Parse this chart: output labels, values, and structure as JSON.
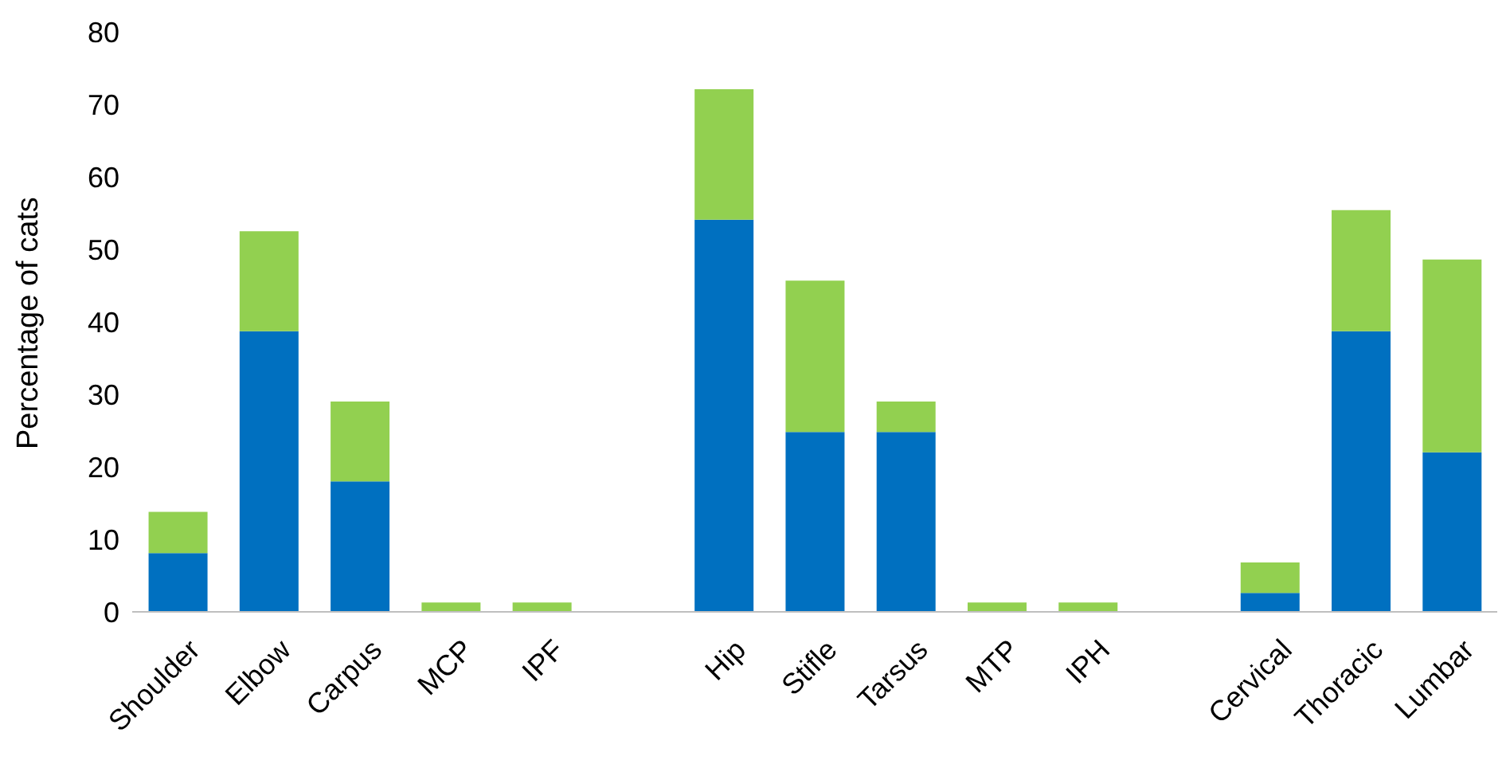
{
  "chart_data": {
    "type": "bar",
    "stacked": true,
    "ylabel": "Percentage of cats",
    "categories": [
      "Shoulder",
      "Elbow",
      "Carpus",
      "MCP",
      "IPF",
      null,
      "Hip",
      "Stifle",
      "Tarsus",
      "MTP",
      "IPH",
      null,
      "Cervical",
      "Thoracic",
      "Lumbar"
    ],
    "series": [
      {
        "color": "#0070c0",
        "values": [
          8.1,
          38.7,
          18.0,
          0,
          0,
          null,
          54.1,
          24.8,
          24.8,
          0,
          0,
          null,
          2.6,
          38.7,
          22.0
        ]
      },
      {
        "color": "#92d050",
        "values": [
          5.7,
          13.8,
          11.0,
          1.3,
          1.3,
          null,
          18.0,
          20.9,
          4.2,
          1.3,
          1.3,
          null,
          4.2,
          16.7,
          26.6
        ]
      }
    ],
    "ylim": [
      0,
      80
    ],
    "yticks": [
      0,
      10,
      20,
      30,
      40,
      50,
      60,
      70,
      80
    ],
    "grid": false,
    "legend": false
  }
}
